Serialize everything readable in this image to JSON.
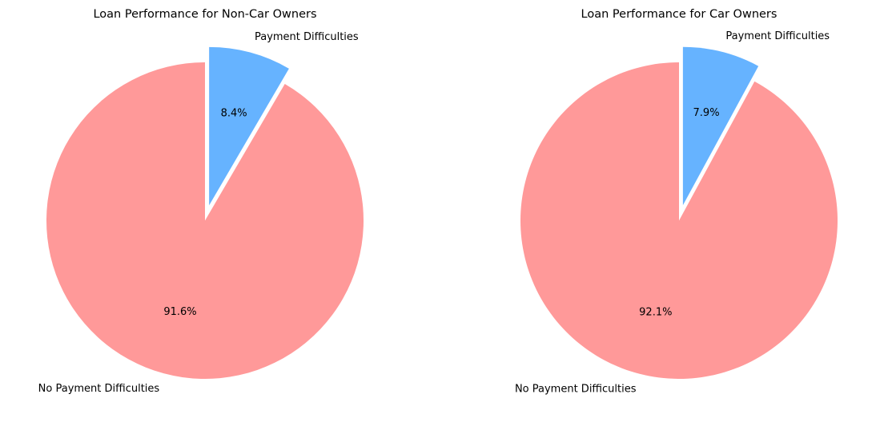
{
  "chart_data": [
    {
      "type": "pie",
      "title": "Loan Performance for Non-Car Owners",
      "labels": [
        "Payment Difficulties",
        "No Payment Difficulties"
      ],
      "values": [
        8.4,
        91.6
      ],
      "value_labels": [
        "8.4%",
        "91.6%"
      ],
      "colors": [
        "#66b3ff",
        "#ff9999"
      ],
      "explode": [
        true,
        false
      ],
      "start_angle": "top (12 o'clock)",
      "direction": "clockwise"
    },
    {
      "type": "pie",
      "title": "Loan Performance for Car Owners",
      "labels": [
        "Payment Difficulties",
        "No Payment Difficulties"
      ],
      "values": [
        7.9,
        92.1
      ],
      "value_labels": [
        "7.9%",
        "92.1%"
      ],
      "colors": [
        "#66b3ff",
        "#ff9999"
      ],
      "explode": [
        true,
        false
      ],
      "start_angle": "top (12 o'clock)",
      "direction": "clockwise"
    }
  ]
}
